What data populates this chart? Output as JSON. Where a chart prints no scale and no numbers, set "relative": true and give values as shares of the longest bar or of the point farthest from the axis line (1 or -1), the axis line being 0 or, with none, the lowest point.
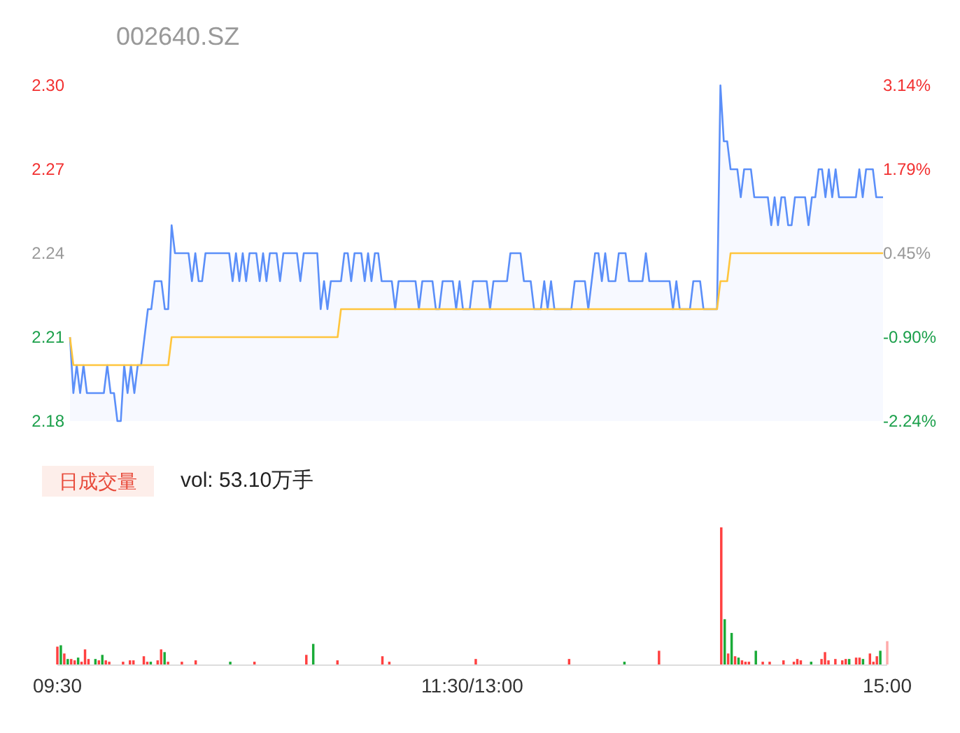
{
  "chart_data": [
    {
      "type": "line",
      "title": "002640.SZ",
      "categories": [
        null,
        null,
        null,
        null,
        null,
        null,
        null,
        null,
        null,
        null,
        null,
        null,
        null,
        null,
        null,
        null,
        null,
        null,
        null,
        null,
        null,
        null,
        null,
        null,
        null,
        null,
        null,
        null,
        null,
        null,
        null,
        null,
        null,
        null,
        null,
        null,
        null,
        null,
        null,
        null,
        null,
        null,
        null,
        null,
        null,
        null,
        null,
        null,
        null,
        null,
        null,
        null,
        null,
        null,
        null,
        null,
        null,
        null,
        null,
        null,
        null,
        null,
        null,
        null,
        null,
        null,
        null,
        null,
        null,
        null,
        null,
        null,
        null,
        null,
        null,
        null,
        null,
        null,
        null,
        null,
        null,
        null,
        null,
        null,
        null,
        null,
        null,
        null,
        null,
        null,
        null,
        null,
        null,
        null,
        null,
        null,
        null,
        null,
        null,
        null,
        null,
        null,
        null,
        null,
        null,
        null,
        null,
        null,
        null,
        null,
        null,
        null,
        null,
        null,
        null,
        null,
        null,
        null,
        null,
        null,
        null,
        null,
        null,
        null,
        null,
        null,
        null,
        null,
        null,
        null,
        null,
        null,
        null,
        null,
        null,
        null,
        null,
        null,
        null,
        null,
        null,
        null,
        null,
        null,
        null,
        null,
        null,
        null,
        null,
        null,
        null,
        null,
        null,
        null,
        null,
        null,
        null,
        null,
        null,
        null,
        null,
        null,
        null,
        null,
        null,
        null,
        null,
        null,
        null,
        null,
        null,
        null,
        null,
        null,
        null,
        null,
        null,
        null,
        null,
        null,
        null,
        null,
        null,
        null,
        null,
        null,
        null,
        null,
        null,
        null,
        null,
        null,
        null,
        null,
        null,
        null,
        null,
        null,
        null,
        null,
        null,
        null,
        null,
        null,
        null,
        null,
        null,
        null,
        null,
        null,
        null,
        null,
        null,
        null,
        null,
        null,
        null,
        null,
        null,
        null,
        null,
        null,
        null,
        null,
        null,
        null,
        null,
        null,
        null,
        null,
        null,
        null,
        null,
        null,
        null,
        null,
        null,
        null,
        null,
        null,
        null
      ],
      "ylim": [
        2.18,
        2.3
      ],
      "yticks": [
        {
          "value": 2.18,
          "label": "2.18"
        },
        {
          "value": 2.21,
          "label": "2.21"
        },
        {
          "value": 2.24,
          "label": "2.24"
        },
        {
          "value": 2.27,
          "label": "2.27"
        },
        {
          "value": 2.3,
          "label": "2.30"
        }
      ],
      "y2lim": [
        -2.24,
        3.14
      ],
      "y2ticks": [
        {
          "value": -2.24,
          "label": "-2.24%"
        },
        {
          "value": -0.9,
          "label": "-0.90%"
        },
        {
          "value": 0.45,
          "label": "0.45%"
        },
        {
          "value": 1.79,
          "label": "1.79%"
        },
        {
          "value": 3.14,
          "label": "3.14%"
        }
      ],
      "series": [
        {
          "type": "area",
          "color": "#5b8ff9",
          "values": [
            2.21,
            2.19,
            2.2,
            2.19,
            2.2,
            2.19,
            2.19,
            2.19,
            2.19,
            2.19,
            2.19,
            2.2,
            2.19,
            2.19,
            2.18,
            2.18,
            2.2,
            2.19,
            2.2,
            2.19,
            2.2,
            2.2,
            2.21,
            2.22,
            2.22,
            2.23,
            2.23,
            2.23,
            2.22,
            2.22,
            2.25,
            2.24,
            2.24,
            2.24,
            2.24,
            2.24,
            2.23,
            2.24,
            2.23,
            2.23,
            2.24,
            2.24,
            2.24,
            2.24,
            2.24,
            2.24,
            2.24,
            2.24,
            2.23,
            2.24,
            2.23,
            2.24,
            2.23,
            2.24,
            2.24,
            2.24,
            2.23,
            2.24,
            2.23,
            2.24,
            2.24,
            2.24,
            2.23,
            2.24,
            2.24,
            2.24,
            2.24,
            2.24,
            2.23,
            2.24,
            2.24,
            2.24,
            2.24,
            2.24,
            2.22,
            2.23,
            2.22,
            2.23,
            2.23,
            2.23,
            2.23,
            2.24,
            2.24,
            2.23,
            2.24,
            2.24,
            2.24,
            2.23,
            2.24,
            2.23,
            2.24,
            2.24,
            2.23,
            2.23,
            2.23,
            2.23,
            2.22,
            2.23,
            2.23,
            2.23,
            2.23,
            2.23,
            2.23,
            2.22,
            2.23,
            2.23,
            2.23,
            2.23,
            2.22,
            2.22,
            2.23,
            2.23,
            2.23,
            2.23,
            2.22,
            2.23,
            2.22,
            2.22,
            2.22,
            2.23,
            2.23,
            2.23,
            2.23,
            2.23,
            2.22,
            2.23,
            2.23,
            2.23,
            2.23,
            2.23,
            2.24,
            2.24,
            2.24,
            2.24,
            2.23,
            2.23,
            2.23,
            2.22,
            2.22,
            2.22,
            2.23,
            2.22,
            2.23,
            2.22,
            2.22,
            2.22,
            2.22,
            2.22,
            2.22,
            2.23,
            2.23,
            2.23,
            2.23,
            2.22,
            2.23,
            2.24,
            2.24,
            2.23,
            2.24,
            2.23,
            2.23,
            2.23,
            2.24,
            2.24,
            2.24,
            2.23,
            2.23,
            2.23,
            2.23,
            2.23,
            2.24,
            2.23,
            2.23,
            2.23,
            2.23,
            2.23,
            2.23,
            2.23,
            2.22,
            2.23,
            2.22,
            2.22,
            2.22,
            2.22,
            2.23,
            2.23,
            2.23,
            2.22,
            2.22,
            2.22,
            2.22,
            2.22,
            2.3,
            2.28,
            2.28,
            2.27,
            2.27,
            2.27,
            2.26,
            2.27,
            2.27,
            2.27,
            2.26,
            2.26,
            2.26,
            2.26,
            2.26,
            2.25,
            2.26,
            2.25,
            2.26,
            2.26,
            2.25,
            2.25,
            2.26,
            2.26,
            2.26,
            2.26,
            2.25,
            2.26,
            2.26,
            2.27,
            2.27,
            2.26,
            2.27,
            2.26,
            2.27,
            2.26,
            2.26,
            2.26,
            2.26,
            2.26,
            2.26,
            2.27,
            2.26,
            2.27,
            2.27,
            2.27,
            2.26,
            2.26,
            2.26
          ]
        },
        {
          "type": "line",
          "color": "#ffc53d",
          "values": [
            2.21,
            2.2,
            2.2,
            2.2,
            2.2,
            2.2,
            2.2,
            2.2,
            2.2,
            2.2,
            2.2,
            2.2,
            2.2,
            2.2,
            2.2,
            2.2,
            2.2,
            2.2,
            2.2,
            2.2,
            2.2,
            2.2,
            2.2,
            2.2,
            2.2,
            2.2,
            2.2,
            2.2,
            2.2,
            2.2,
            2.21,
            2.21,
            2.21,
            2.21,
            2.21,
            2.21,
            2.21,
            2.21,
            2.21,
            2.21,
            2.21,
            2.21,
            2.21,
            2.21,
            2.21,
            2.21,
            2.21,
            2.21,
            2.21,
            2.21,
            2.21,
            2.21,
            2.21,
            2.21,
            2.21,
            2.21,
            2.21,
            2.21,
            2.21,
            2.21,
            2.21,
            2.21,
            2.21,
            2.21,
            2.21,
            2.21,
            2.21,
            2.21,
            2.21,
            2.21,
            2.21,
            2.21,
            2.21,
            2.21,
            2.21,
            2.21,
            2.21,
            2.21,
            2.21,
            2.21,
            2.22,
            2.22,
            2.22,
            2.22,
            2.22,
            2.22,
            2.22,
            2.22,
            2.22,
            2.22,
            2.22,
            2.22,
            2.22,
            2.22,
            2.22,
            2.22,
            2.22,
            2.22,
            2.22,
            2.22,
            2.22,
            2.22,
            2.22,
            2.22,
            2.22,
            2.22,
            2.22,
            2.22,
            2.22,
            2.22,
            2.22,
            2.22,
            2.22,
            2.22,
            2.22,
            2.22,
            2.22,
            2.22,
            2.22,
            2.22,
            2.22,
            2.22,
            2.22,
            2.22,
            2.22,
            2.22,
            2.22,
            2.22,
            2.22,
            2.22,
            2.22,
            2.22,
            2.22,
            2.22,
            2.22,
            2.22,
            2.22,
            2.22,
            2.22,
            2.22,
            2.22,
            2.22,
            2.22,
            2.22,
            2.22,
            2.22,
            2.22,
            2.22,
            2.22,
            2.22,
            2.22,
            2.22,
            2.22,
            2.22,
            2.22,
            2.22,
            2.22,
            2.22,
            2.22,
            2.22,
            2.22,
            2.22,
            2.22,
            2.22,
            2.22,
            2.22,
            2.22,
            2.22,
            2.22,
            2.22,
            2.22,
            2.22,
            2.22,
            2.22,
            2.22,
            2.22,
            2.22,
            2.22,
            2.22,
            2.22,
            2.22,
            2.22,
            2.22,
            2.22,
            2.22,
            2.22,
            2.22,
            2.22,
            2.22,
            2.22,
            2.22,
            2.22,
            2.23,
            2.23,
            2.23,
            2.24,
            2.24,
            2.24,
            2.24,
            2.24,
            2.24,
            2.24,
            2.24,
            2.24,
            2.24,
            2.24,
            2.24,
            2.24,
            2.24,
            2.24,
            2.24,
            2.24,
            2.24,
            2.24,
            2.24,
            2.24,
            2.24,
            2.24,
            2.24,
            2.24,
            2.24,
            2.24,
            2.24,
            2.24,
            2.24,
            2.24,
            2.24,
            2.24,
            2.24,
            2.24,
            2.24,
            2.24,
            2.24,
            2.24,
            2.24,
            2.24,
            2.24,
            2.24,
            2.24,
            2.24,
            2.24
          ]
        }
      ]
    },
    {
      "type": "bar",
      "relative": true,
      "categories": [
        "09:30",
        null,
        null,
        null,
        null,
        null,
        null,
        null,
        null,
        null,
        null,
        null,
        null,
        null,
        null,
        null,
        null,
        null,
        null,
        null,
        null,
        null,
        null,
        null,
        null,
        null,
        null,
        null,
        null,
        null,
        null,
        null,
        null,
        null,
        null,
        null,
        null,
        null,
        null,
        null,
        null,
        null,
        null,
        null,
        null,
        null,
        null,
        null,
        null,
        null,
        null,
        null,
        null,
        null,
        null,
        null,
        null,
        null,
        null,
        null,
        null,
        null,
        null,
        null,
        null,
        null,
        null,
        null,
        null,
        null,
        null,
        null,
        null,
        null,
        null,
        null,
        null,
        null,
        null,
        null,
        null,
        null,
        null,
        null,
        null,
        null,
        null,
        null,
        null,
        null,
        null,
        null,
        null,
        null,
        null,
        null,
        null,
        null,
        null,
        null,
        null,
        null,
        null,
        null,
        null,
        null,
        null,
        null,
        null,
        null,
        null,
        null,
        null,
        null,
        null,
        null,
        null,
        null,
        null,
        null,
        "11:30/13:00",
        null,
        null,
        null,
        null,
        null,
        null,
        null,
        null,
        null,
        null,
        null,
        null,
        null,
        null,
        null,
        null,
        null,
        null,
        null,
        null,
        null,
        null,
        null,
        null,
        null,
        null,
        null,
        null,
        null,
        null,
        null,
        null,
        null,
        null,
        null,
        null,
        null,
        null,
        null,
        null,
        null,
        null,
        null,
        null,
        null,
        null,
        null,
        null,
        null,
        null,
        null,
        null,
        null,
        null,
        null,
        null,
        null,
        null,
        null,
        null,
        null,
        null,
        null,
        null,
        null,
        null,
        null,
        null,
        null,
        null,
        null,
        null,
        null,
        null,
        null,
        null,
        null,
        null,
        null,
        null,
        null,
        null,
        null,
        null,
        null,
        null,
        null,
        null,
        null,
        null,
        null,
        null,
        null,
        null,
        null,
        null,
        null,
        null,
        null,
        null,
        null,
        null,
        null,
        null,
        null,
        null,
        null,
        null,
        null,
        null,
        null,
        null,
        null,
        null,
        null,
        null,
        null,
        null,
        null,
        "15:00"
      ],
      "annotations": [
        "日成交量",
        "vol: 53.10万手"
      ],
      "values": [
        0.13,
        0.14,
        0.08,
        0.04,
        0.04,
        0.03,
        0.05,
        0.02,
        0.11,
        0.04,
        null,
        0.04,
        0.03,
        0.07,
        0.03,
        0.02,
        null,
        null,
        null,
        0.02,
        null,
        0.03,
        0.03,
        null,
        null,
        0.06,
        0.02,
        0.02,
        null,
        0.03,
        0.11,
        0.09,
        0.02,
        null,
        null,
        null,
        0.02,
        null,
        null,
        null,
        0.03,
        null,
        null,
        null,
        null,
        null,
        null,
        null,
        null,
        null,
        0.02,
        null,
        null,
        null,
        null,
        null,
        null,
        0.02,
        null,
        null,
        null,
        null,
        null,
        null,
        null,
        null,
        null,
        null,
        null,
        null,
        null,
        null,
        0.07,
        null,
        0.15,
        null,
        null,
        null,
        null,
        null,
        null,
        0.03,
        null,
        null,
        null,
        null,
        null,
        null,
        null,
        null,
        null,
        null,
        null,
        null,
        0.06,
        null,
        0.02,
        null,
        null,
        null,
        null,
        null,
        null,
        null,
        null,
        null,
        null,
        null,
        null,
        null,
        null,
        null,
        null,
        null,
        null,
        null,
        null,
        null,
        null,
        null,
        null,
        0.04,
        null,
        null,
        null,
        null,
        null,
        null,
        null,
        null,
        null,
        null,
        null,
        null,
        null,
        null,
        null,
        null,
        null,
        null,
        null,
        null,
        null,
        null,
        null,
        null,
        null,
        null,
        0.04,
        null,
        null,
        null,
        null,
        null,
        null,
        null,
        null,
        null,
        null,
        null,
        null,
        null,
        null,
        null,
        0.02,
        null,
        null,
        null,
        null,
        null,
        null,
        null,
        null,
        null,
        0.1,
        null,
        null,
        null,
        null,
        null,
        null,
        null,
        null,
        null,
        null,
        null,
        null,
        null,
        null,
        null,
        null,
        null,
        1,
        0.33,
        0.08,
        0.23,
        0.06,
        0.05,
        0.03,
        0.02,
        0.02,
        null,
        0.1,
        null,
        0.02,
        null,
        0.02,
        null,
        null,
        null,
        0.03,
        null,
        null,
        0.02,
        0.04,
        0.03,
        null,
        null,
        0.02,
        null,
        null,
        0.04,
        0.09,
        0.03,
        null,
        0.04,
        null,
        0.03,
        0.04,
        0.04,
        null,
        0.05,
        0.05,
        0.04,
        null,
        0.08,
        0.02,
        0.06,
        0.1,
        null,
        0.17
      ],
      "colors": [
        "#ff4040",
        "#1aab38",
        "#ff4040",
        "#1aab38",
        "#ff4040",
        "#ff4040",
        "#1aab38",
        "#ff4040",
        "#ff4040",
        "#ff4040",
        null,
        "#1aab38",
        "#ff4040",
        "#1aab38",
        "#ff4040",
        "#ff4040",
        null,
        null,
        null,
        "#ff4040",
        null,
        "#ff4040",
        "#ff4040",
        null,
        null,
        "#ff4040",
        "#ff4040",
        "#1aab38",
        null,
        "#ff4040",
        "#ff4040",
        "#1aab38",
        "#ff4040",
        null,
        null,
        null,
        "#ff4040",
        null,
        null,
        null,
        "#ff4040",
        null,
        null,
        null,
        null,
        null,
        null,
        null,
        null,
        null,
        "#1aab38",
        null,
        null,
        null,
        null,
        null,
        null,
        "#ff4040",
        null,
        null,
        null,
        null,
        null,
        null,
        null,
        null,
        null,
        null,
        null,
        null,
        null,
        null,
        "#ff4040",
        null,
        "#1aab38",
        null,
        null,
        null,
        null,
        null,
        null,
        "#ff4040",
        null,
        null,
        null,
        null,
        null,
        null,
        null,
        null,
        null,
        null,
        null,
        null,
        "#ff4040",
        null,
        "#ff4040",
        null,
        null,
        null,
        null,
        null,
        null,
        null,
        null,
        null,
        null,
        null,
        null,
        null,
        null,
        null,
        null,
        null,
        null,
        null,
        null,
        null,
        null,
        null,
        null,
        "#ff4040",
        null,
        null,
        null,
        null,
        null,
        null,
        null,
        null,
        null,
        null,
        null,
        null,
        null,
        null,
        null,
        null,
        null,
        null,
        null,
        null,
        null,
        null,
        null,
        null,
        null,
        null,
        "#ff4040",
        null,
        null,
        null,
        null,
        null,
        null,
        null,
        null,
        null,
        null,
        null,
        null,
        null,
        null,
        null,
        "#1aab38",
        null,
        null,
        null,
        null,
        null,
        null,
        null,
        null,
        null,
        "#ff4040",
        null,
        null,
        null,
        null,
        null,
        null,
        null,
        null,
        null,
        null,
        null,
        null,
        null,
        null,
        null,
        null,
        null,
        "#ff4040",
        "#1aab38",
        "#ff4040",
        "#1aab38",
        "#ff4040",
        "#1aab38",
        "#ff4040",
        "#ff4040",
        "#ff4040",
        null,
        "#1aab38",
        null,
        "#ff4040",
        null,
        "#ff4040",
        null,
        null,
        null,
        "#ff4040",
        null,
        null,
        "#ff4040",
        "#ff4040",
        "#ff4040",
        null,
        null,
        "#1aab38",
        null,
        null,
        "#ff4040",
        "#ff4040",
        "#ff4040",
        null,
        "#ff4040",
        null,
        "#ff4040",
        "#ff4040",
        "#1aab38",
        null,
        "#ff4040",
        "#ff4040",
        "#1aab38",
        null,
        "#ff4040",
        "#ff4040",
        "#ff4040",
        "#1aab38",
        null,
        "#ffaaaa"
      ]
    }
  ]
}
